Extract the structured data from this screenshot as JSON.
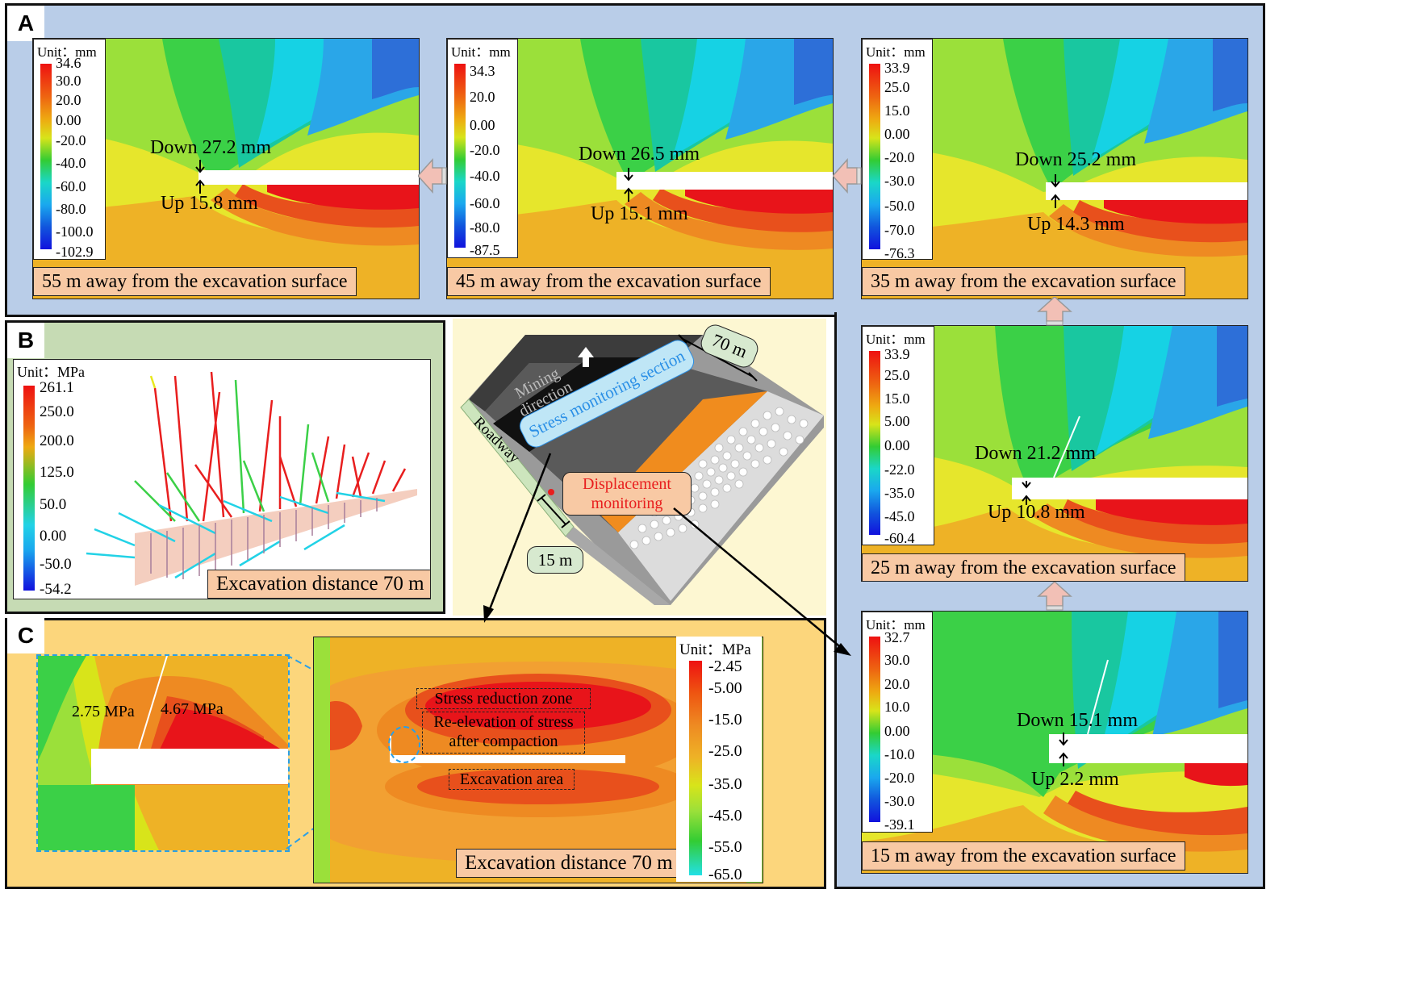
{
  "panel_labels": {
    "a": "A",
    "b": "B",
    "c": "C"
  },
  "displacement_maps": [
    {
      "caption": "55 m away from the excavation surface",
      "unit": "Unit：mm",
      "ticks": [
        "34.6",
        "30.0",
        "20.0",
        "0.00",
        "-20.0",
        "-40.0",
        "-60.0",
        "-80.0",
        "-100.0",
        "-102.9"
      ],
      "down": "Down 27.2 mm",
      "up": "Up 15.8 mm"
    },
    {
      "caption": "45 m away from the excavation surface",
      "unit": "Unit：mm",
      "ticks": [
        "34.3",
        "20.0",
        "0.00",
        "-20.0",
        "-40.0",
        "-60.0",
        "-80.0",
        "-87.5"
      ],
      "down": "Down 26.5 mm",
      "up": "Up 15.1 mm"
    },
    {
      "caption": "35 m away from the excavation surface",
      "unit": "Unit：mm",
      "ticks": [
        "33.9",
        "25.0",
        "15.0",
        "0.00",
        "-20.0",
        "-30.0",
        "-50.0",
        "-70.0",
        "-76.3"
      ],
      "down": "Down 25.2 mm",
      "up": "Up 14.3 mm"
    },
    {
      "caption": "25 m away from the excavation surface",
      "unit": "Unit：mm",
      "ticks": [
        "33.9",
        "25.0",
        "15.0",
        "5.00",
        "0.00",
        "-22.0",
        "-35.0",
        "-45.0",
        "-60.4"
      ],
      "down": "Down 21.2 mm",
      "up": "Up 10.8 mm"
    },
    {
      "caption": "15 m away from the excavation surface",
      "unit": "Unit：mm",
      "ticks": [
        "32.7",
        "30.0",
        "20.0",
        "10.0",
        "0.00",
        "-10.0",
        "-20.0",
        "-30.0",
        "-39.1"
      ],
      "down": "Down 15.1 mm",
      "up": "Up 2.2 mm"
    }
  ],
  "bolt_panel": {
    "unit": "Unit：MPa",
    "ticks": [
      "261.1",
      "250.0",
      "200.0",
      "125.0",
      "50.0",
      "0.00",
      "-50.0",
      "-54.2"
    ],
    "caption": "Excavation distance 70 m"
  },
  "schematic": {
    "mining_direction": "Mining direction",
    "stress_section": "Stress monitoring section",
    "roadway": "Roadway",
    "displacement": "Displacement monitoring",
    "dist_70": "70 m",
    "dist_15": "15 m"
  },
  "stress_panel": {
    "unit": "Unit：MPa",
    "ticks": [
      "-2.45",
      "-5.00",
      "-15.0",
      "-25.0",
      "-35.0",
      "-45.0",
      "-55.0",
      "-65.0"
    ],
    "caption": "Excavation distance 70 m",
    "zone_reduction": "Stress reduction zone",
    "zone_reelevation_1": "Re-elevation of stress",
    "zone_reelevation_2": "after compaction",
    "zone_excavation": "Excavation area",
    "inset_left": "2.75 MPa",
    "inset_right": "4.67 MPa"
  },
  "colors": {
    "panel_a_bg": "#b9cde8",
    "panel_b_bg": "#c6dbb4",
    "panel_c_bg": "#fcd67c",
    "schematic_bg": "#fdf7d2",
    "caption_bg": "#f8c9a4",
    "callout_green": "#d7e9cf",
    "callout_blue": "#bfe6f6"
  }
}
